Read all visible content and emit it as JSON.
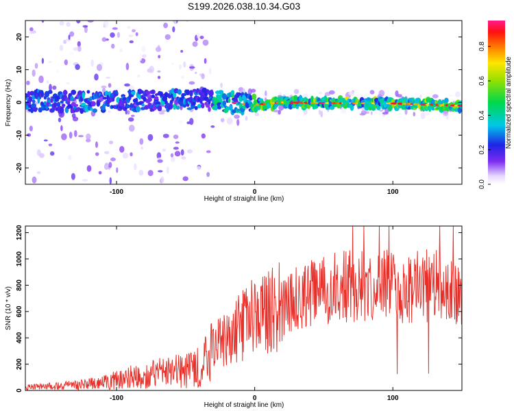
{
  "title": "S199.2026.038.10.34.G03",
  "colors": {
    "snr_line": "#e8302a",
    "frame": "#000000"
  },
  "chart_data": [
    {
      "type": "heatmap",
      "xlabel": "Height of straight line (km)",
      "ylabel": "Frequency (Hz)",
      "xlim": [
        -166,
        150
      ],
      "ylim": [
        -25,
        25
      ],
      "xticks": [
        -100,
        0,
        100
      ],
      "yticks": [
        -20,
        -10,
        0,
        10,
        20
      ],
      "xtick_labels": [
        "-100",
        "0",
        "100"
      ],
      "ytick_labels": [
        "-20",
        "-10",
        "0",
        "10",
        "20"
      ],
      "colorbar": {
        "label": "Normalized spectral amplitude",
        "range": [
          0,
          0.95
        ],
        "ticks": [
          0.0,
          0.2,
          0.4,
          0.6,
          0.8
        ],
        "tick_labels": [
          "0.0",
          "0.2",
          "0.4",
          "0.6",
          "0.8"
        ]
      },
      "description_of_data": "Signal frequency near 0 Hz across heights; scattered noise below about -25 km, concentrated ridge with amplitude 0.5-0.9 above 0 km",
      "ridge": [
        {
          "x": -150,
          "y": 0.5
        },
        {
          "x": -120,
          "y": 0.3
        },
        {
          "x": -90,
          "y": 0.5
        },
        {
          "x": -60,
          "y": 0.8
        },
        {
          "x": -40,
          "y": 1.2
        },
        {
          "x": -20,
          "y": 0.2
        },
        {
          "x": 0,
          "y": -0.8
        },
        {
          "x": 20,
          "y": 0.0
        },
        {
          "x": 50,
          "y": -0.2
        },
        {
          "x": 100,
          "y": -0.3
        },
        {
          "x": 150,
          "y": -1.0
        }
      ]
    },
    {
      "type": "line",
      "xlabel": "Height of straight line (km)",
      "ylabel": "SNR (10 * v/v)",
      "xlim": [
        -166,
        150
      ],
      "ylim": [
        0,
        1250
      ],
      "xticks": [
        -100,
        0,
        100
      ],
      "yticks": [
        0,
        200,
        400,
        600,
        800,
        1000,
        1200
      ],
      "xtick_labels": [
        "-100",
        "0",
        "100"
      ],
      "ytick_labels": [
        "0",
        "200",
        "400",
        "600",
        "800",
        "1000",
        "1200"
      ],
      "series": [
        {
          "name": "SNR",
          "x": [
            -166,
            -150,
            -130,
            -110,
            -100,
            -90,
            -80,
            -70,
            -60,
            -50,
            -40,
            -35,
            -30,
            -25,
            -20,
            -10,
            0,
            10,
            20,
            30,
            40,
            50,
            60,
            70,
            80,
            90,
            100,
            110,
            120,
            130,
            140,
            150
          ],
          "y": [
            25,
            30,
            40,
            60,
            80,
            100,
            110,
            130,
            140,
            150,
            190,
            230,
            350,
            380,
            420,
            480,
            560,
            600,
            640,
            700,
            740,
            760,
            780,
            800,
            790,
            810,
            780,
            770,
            790,
            800,
            770,
            760
          ]
        }
      ]
    }
  ]
}
